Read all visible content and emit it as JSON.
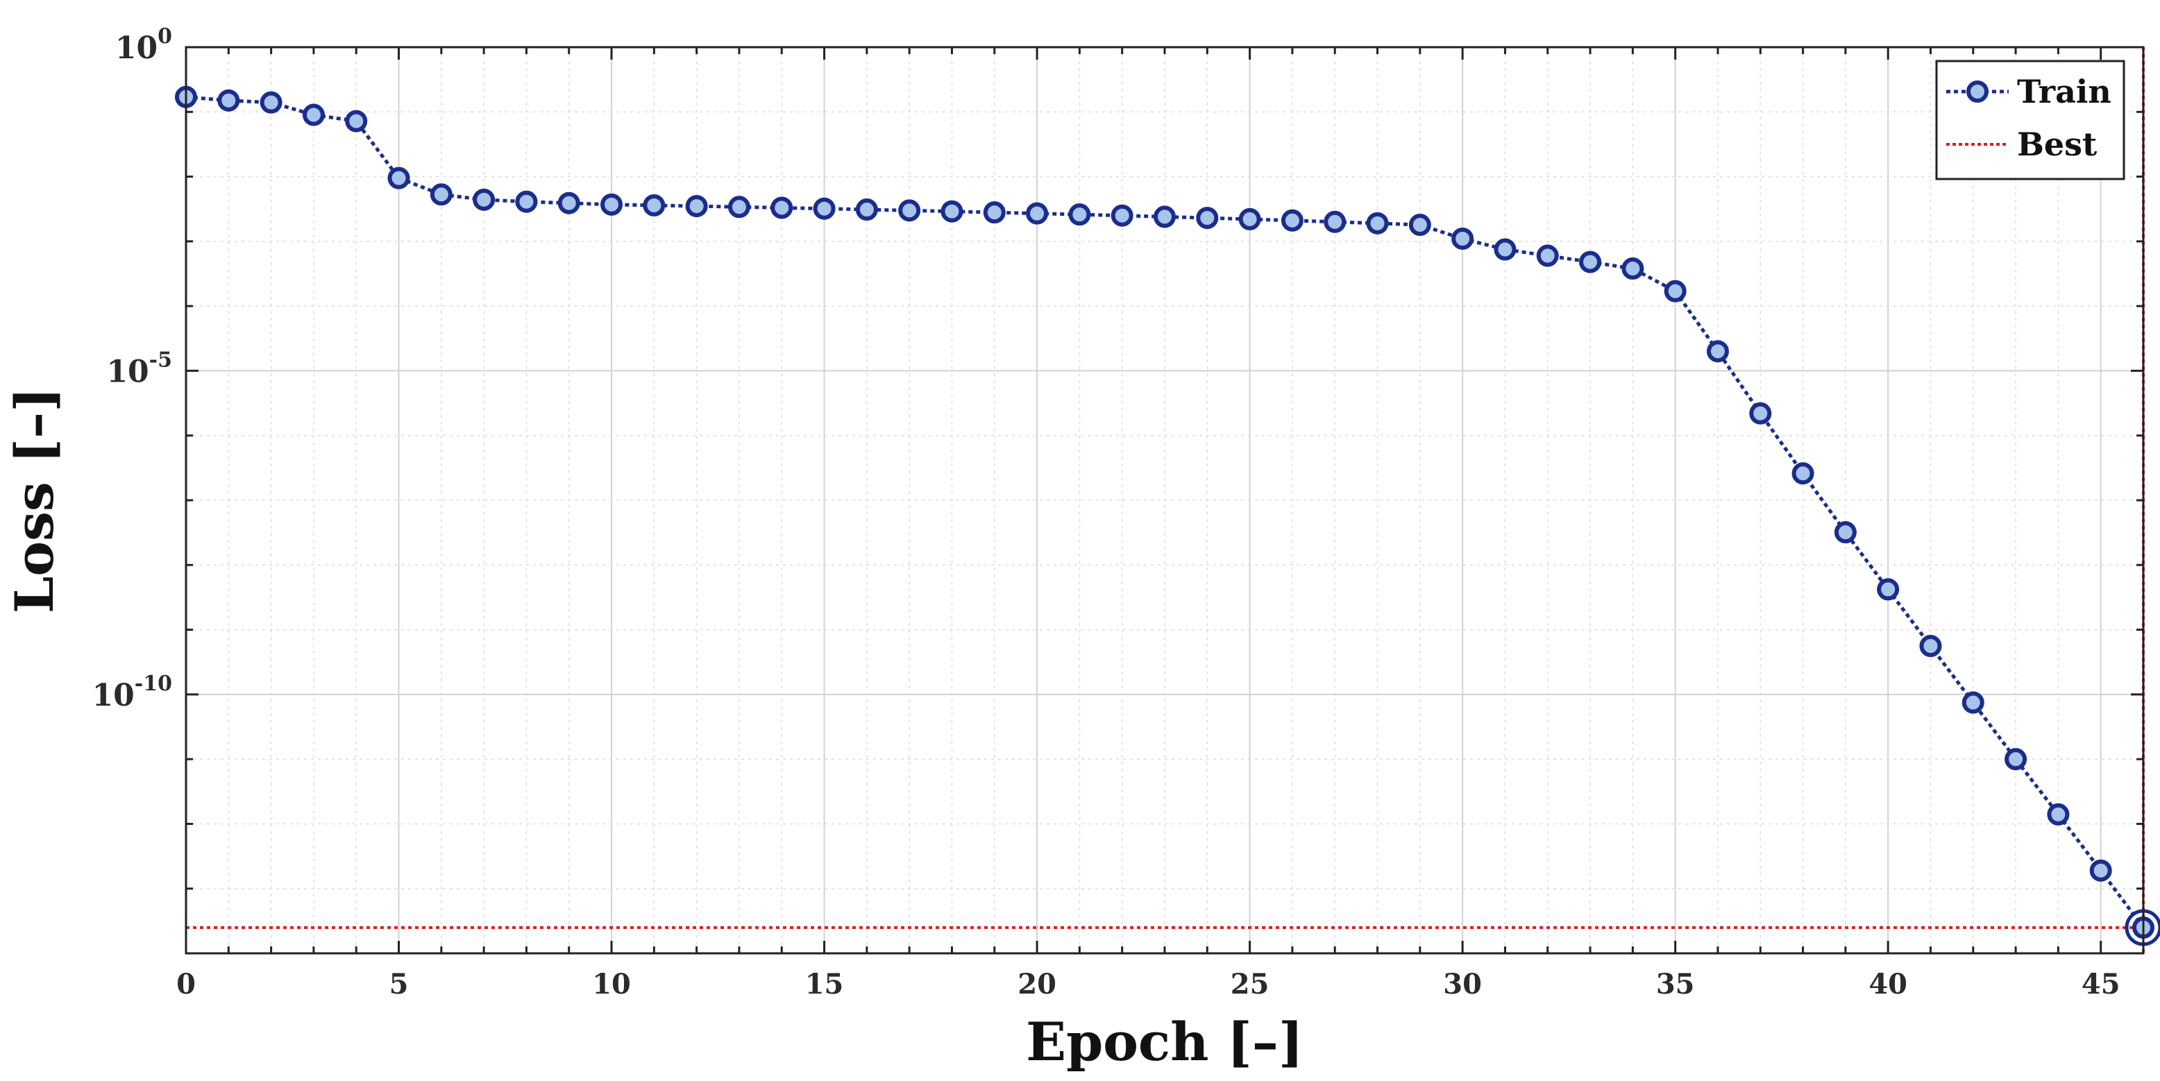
{
  "chart_data": {
    "type": "line",
    "title": "",
    "xlabel": "Epoch [–]",
    "ylabel": "Loss [–]",
    "yscale": "log",
    "xlim": [
      0,
      46
    ],
    "ylim": [
      1e-14,
      1
    ],
    "x_ticks": [
      0,
      5,
      10,
      15,
      20,
      25,
      30,
      35,
      40,
      45
    ],
    "y_ticks": [
      {
        "value": 1,
        "base": "10",
        "exp": "0"
      },
      {
        "value": 1e-05,
        "base": "10",
        "exp": "-5"
      },
      {
        "value": 1e-10,
        "base": "10",
        "exp": "-10"
      }
    ],
    "grid": true,
    "minor_grid": true,
    "legend": "top-right",
    "series": [
      {
        "name": "Train",
        "color": "#1a2d8c",
        "marker_fill": "#a9c4ea",
        "x": [
          0,
          1,
          2,
          3,
          4,
          5,
          6,
          7,
          8,
          9,
          10,
          11,
          12,
          13,
          14,
          15,
          16,
          17,
          18,
          19,
          20,
          21,
          22,
          23,
          24,
          25,
          26,
          27,
          28,
          29,
          30,
          31,
          32,
          33,
          34,
          35,
          36,
          37,
          38,
          39,
          40,
          41,
          42,
          43,
          44,
          45,
          46
        ],
        "y": [
          0.17,
          0.15,
          0.14,
          0.09,
          0.072,
          0.0095,
          0.0053,
          0.0044,
          0.0041,
          0.0039,
          0.0037,
          0.0036,
          0.0035,
          0.0034,
          0.0033,
          0.0032,
          0.0031,
          0.003,
          0.0029,
          0.0028,
          0.0027,
          0.0026,
          0.0025,
          0.0024,
          0.0023,
          0.0022,
          0.0021,
          0.002,
          0.0019,
          0.0018,
          0.0011,
          0.00075,
          0.0006,
          0.00048,
          0.00038,
          0.00017,
          2e-05,
          2.2e-06,
          2.6e-07,
          3.2e-08,
          4.2e-09,
          5.6e-10,
          7.5e-11,
          1e-11,
          1.4e-12,
          1.9e-13,
          2.5e-14
        ]
      },
      {
        "name": "Best",
        "color": "#e01b1b",
        "best_epoch": 46,
        "best_value": 2.5e-14
      }
    ]
  }
}
